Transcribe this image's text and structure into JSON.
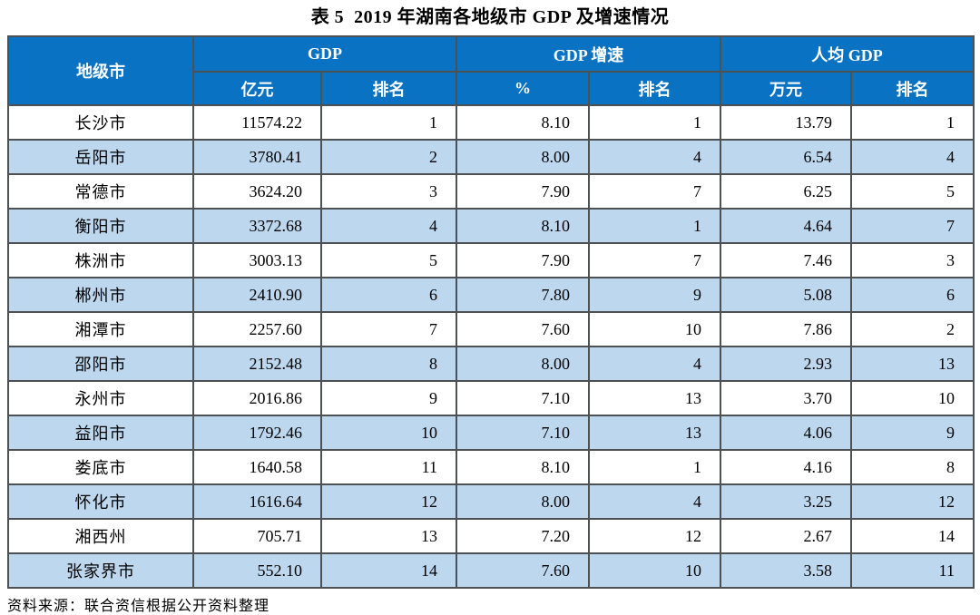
{
  "title": "表 5  2019 年湖南各地级市 GDP 及增速情况",
  "table": {
    "header": {
      "col_city": "地级市",
      "group_gdp": "GDP",
      "group_growth": "GDP 增速",
      "group_percap": "人均 GDP",
      "sub_gdp_unit": "亿元",
      "sub_gdp_rank": "排名",
      "sub_growth_unit": "%",
      "sub_growth_rank": "排名",
      "sub_percap_unit": "万元",
      "sub_percap_rank": "排名"
    },
    "rows": [
      {
        "city": "长沙市",
        "gdp": "11574.22",
        "gdp_rank": "1",
        "growth": "8.10",
        "growth_rank": "1",
        "percap": "13.79",
        "percap_rank": "1"
      },
      {
        "city": "岳阳市",
        "gdp": "3780.41",
        "gdp_rank": "2",
        "growth": "8.00",
        "growth_rank": "4",
        "percap": "6.54",
        "percap_rank": "4"
      },
      {
        "city": "常德市",
        "gdp": "3624.20",
        "gdp_rank": "3",
        "growth": "7.90",
        "growth_rank": "7",
        "percap": "6.25",
        "percap_rank": "5"
      },
      {
        "city": "衡阳市",
        "gdp": "3372.68",
        "gdp_rank": "4",
        "growth": "8.10",
        "growth_rank": "1",
        "percap": "4.64",
        "percap_rank": "7"
      },
      {
        "city": "株洲市",
        "gdp": "3003.13",
        "gdp_rank": "5",
        "growth": "7.90",
        "growth_rank": "7",
        "percap": "7.46",
        "percap_rank": "3"
      },
      {
        "city": "郴州市",
        "gdp": "2410.90",
        "gdp_rank": "6",
        "growth": "7.80",
        "growth_rank": "9",
        "percap": "5.08",
        "percap_rank": "6"
      },
      {
        "city": "湘潭市",
        "gdp": "2257.60",
        "gdp_rank": "7",
        "growth": "7.60",
        "growth_rank": "10",
        "percap": "7.86",
        "percap_rank": "2"
      },
      {
        "city": "邵阳市",
        "gdp": "2152.48",
        "gdp_rank": "8",
        "growth": "8.00",
        "growth_rank": "4",
        "percap": "2.93",
        "percap_rank": "13"
      },
      {
        "city": "永州市",
        "gdp": "2016.86",
        "gdp_rank": "9",
        "growth": "7.10",
        "growth_rank": "13",
        "percap": "3.70",
        "percap_rank": "10"
      },
      {
        "city": "益阳市",
        "gdp": "1792.46",
        "gdp_rank": "10",
        "growth": "7.10",
        "growth_rank": "13",
        "percap": "4.06",
        "percap_rank": "9"
      },
      {
        "city": "娄底市",
        "gdp": "1640.58",
        "gdp_rank": "11",
        "growth": "8.10",
        "growth_rank": "1",
        "percap": "4.16",
        "percap_rank": "8"
      },
      {
        "city": "怀化市",
        "gdp": "1616.64",
        "gdp_rank": "12",
        "growth": "8.00",
        "growth_rank": "4",
        "percap": "3.25",
        "percap_rank": "12"
      },
      {
        "city": "湘西州",
        "gdp": "705.71",
        "gdp_rank": "13",
        "growth": "7.20",
        "growth_rank": "12",
        "percap": "2.67",
        "percap_rank": "14"
      },
      {
        "city": "张家界市",
        "gdp": "552.10",
        "gdp_rank": "14",
        "growth": "7.60",
        "growth_rank": "10",
        "percap": "3.58",
        "percap_rank": "11"
      }
    ]
  },
  "source_note": "资料来源：联合资信根据公开资料整理",
  "colors": {
    "header_bg": "#0a72c2",
    "stripe_bg": "#bdd7ee",
    "header_text": "#ffffff",
    "border": "#4e5154"
  }
}
